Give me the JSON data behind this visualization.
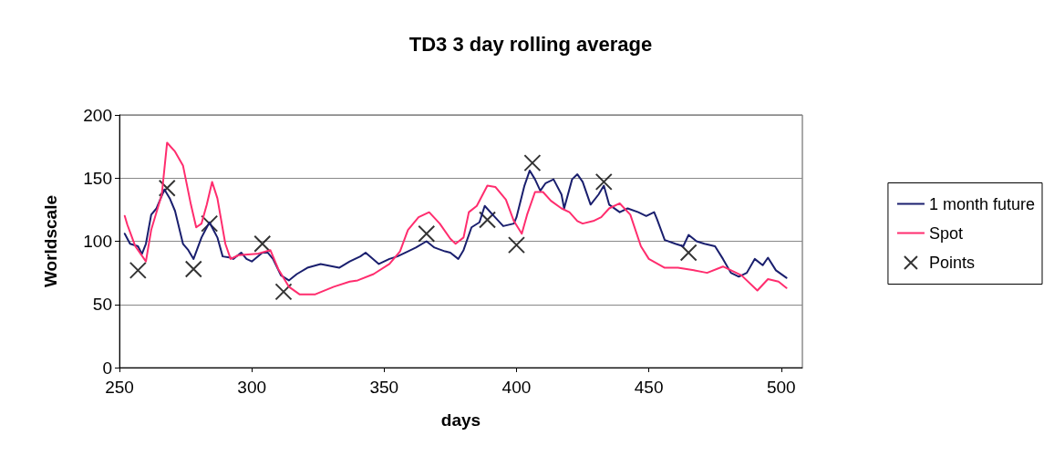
{
  "chart_data": {
    "type": "line",
    "title": "TD3 3 day rolling average",
    "xlabel": "days",
    "ylabel": "Worldscale",
    "xlim": [
      250,
      508
    ],
    "xticks": [
      250,
      300,
      350,
      400,
      450,
      500
    ],
    "ylim": [
      0,
      200
    ],
    "yticks": [
      0,
      50,
      100,
      150,
      200
    ],
    "grid": "y",
    "legend": "right",
    "marker": "none",
    "line_style": "solid",
    "series": [
      {
        "name": "1 month future",
        "color": "#1a1f6e",
        "x": [
          252,
          254,
          257,
          258.5,
          260,
          262,
          264,
          267,
          269,
          271,
          274,
          276,
          278,
          281,
          284,
          287,
          289,
          292,
          293,
          296,
          298,
          300,
          304,
          306,
          308,
          311,
          314,
          317,
          321,
          326,
          333,
          337,
          341,
          343,
          348,
          352,
          355,
          359,
          362,
          366,
          369,
          373,
          375,
          378,
          380,
          383,
          386,
          388,
          391,
          395,
          399,
          400,
          403,
          405,
          407,
          409,
          411,
          414,
          417,
          418,
          421,
          423,
          425,
          428,
          431,
          433,
          435,
          439,
          442,
          446,
          449,
          452,
          453,
          456,
          460,
          463,
          465,
          468,
          471,
          475,
          478,
          481,
          484,
          487,
          490,
          493,
          495,
          498,
          502
        ],
        "values": [
          106,
          98,
          96,
          90,
          98,
          121,
          126,
          141,
          134,
          124,
          98,
          93,
          86,
          103,
          115,
          103,
          88,
          87,
          86,
          91,
          86,
          84,
          91,
          91,
          86,
          73,
          69,
          74,
          79,
          82,
          79,
          84,
          88,
          91,
          82,
          86,
          88,
          92,
          95,
          100,
          95,
          92,
          91,
          86,
          93,
          111,
          115,
          128,
          121,
          112,
          114,
          119,
          144,
          156,
          149,
          140,
          146,
          149,
          137,
          126,
          149,
          153,
          147,
          129,
          137,
          144,
          129,
          123,
          126,
          123,
          120,
          123,
          118,
          101,
          98,
          96,
          105,
          100,
          98,
          96,
          86,
          75,
          72,
          75,
          86,
          81,
          87,
          77,
          71
        ]
      },
      {
        "name": "Spot",
        "color": "#ff2d6e",
        "x": [
          252,
          253,
          256,
          260,
          262,
          266,
          268,
          271,
          274,
          277,
          279,
          281,
          283,
          285,
          287,
          290,
          292,
          295,
          302,
          307,
          310,
          314,
          318,
          324,
          331,
          337,
          340,
          346,
          352,
          356,
          359,
          363,
          367,
          371,
          375,
          377,
          380,
          382,
          385,
          389,
          392,
          396,
          399,
          402,
          404,
          407,
          410,
          413,
          417,
          420,
          423,
          425,
          429,
          432,
          435,
          439,
          443,
          447,
          450,
          456,
          461,
          467,
          472,
          478,
          485,
          491,
          495,
          499,
          502
        ],
        "values": [
          120,
          113,
          96,
          84,
          109,
          137,
          178,
          171,
          160,
          129,
          111,
          114,
          129,
          147,
          134,
          98,
          86,
          89,
          90,
          93,
          78,
          64,
          58,
          58,
          64,
          68,
          69,
          74,
          82,
          92,
          109,
          119,
          123,
          114,
          102,
          98,
          103,
          123,
          128,
          144,
          143,
          133,
          116,
          106,
          121,
          139,
          139,
          132,
          126,
          123,
          116,
          114,
          116,
          119,
          126,
          130,
          121,
          96,
          86,
          79,
          79,
          77,
          75,
          80,
          73,
          61,
          70,
          68,
          63
        ]
      },
      {
        "name": "Points",
        "type": "scatter",
        "color": "#000000",
        "marker": "cross",
        "x": [
          257,
          268,
          278,
          284,
          304,
          312,
          366,
          389,
          400,
          406,
          433,
          465
        ],
        "values": [
          77,
          142,
          78,
          114,
          98,
          60,
          106,
          117,
          97,
          162,
          147,
          91
        ]
      }
    ]
  }
}
